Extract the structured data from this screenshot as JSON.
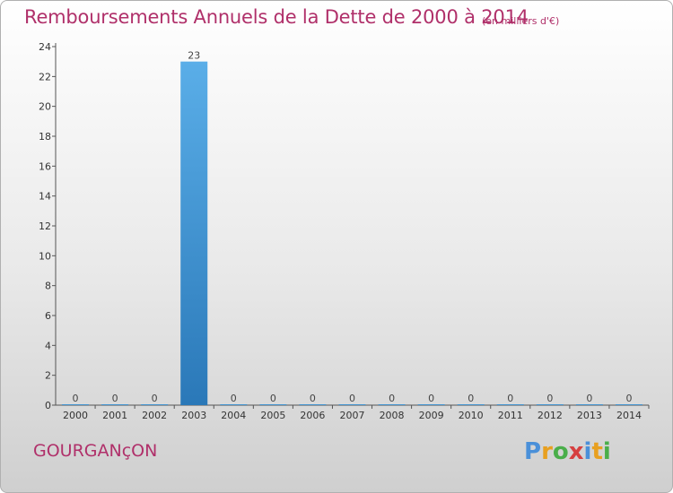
{
  "chart_data": {
    "type": "bar",
    "title": "Remboursements Annuels de la Dette de 2000 à 2014",
    "subtitle": "(en milliers d'€)",
    "categories": [
      "2000",
      "2001",
      "2002",
      "2003",
      "2004",
      "2005",
      "2006",
      "2007",
      "2008",
      "2009",
      "2010",
      "2011",
      "2012",
      "2013",
      "2014"
    ],
    "values": [
      0,
      0,
      0,
      23,
      0,
      0,
      0,
      0,
      0,
      0,
      0,
      0,
      0,
      0,
      0
    ],
    "ylim": [
      0,
      24
    ],
    "yticks": [
      0,
      2,
      4,
      6,
      8,
      10,
      12,
      14,
      16,
      18,
      20,
      22,
      24
    ],
    "xlabel": "",
    "ylabel": "",
    "grid": false,
    "bar_color_top": "#5aaee8",
    "bar_color_bottom": "#2a78b8"
  },
  "footer": {
    "commune": "GOURGANçON",
    "logo_letters": [
      {
        "char": "P",
        "color": "#4a90d9"
      },
      {
        "char": "r",
        "color": "#e8a020"
      },
      {
        "char": "o",
        "color": "#4aae4a"
      },
      {
        "char": "x",
        "color": "#d64040"
      },
      {
        "char": "i",
        "color": "#4a90d9"
      },
      {
        "char": "t",
        "color": "#e8a020"
      },
      {
        "char": "i",
        "color": "#4aae4a"
      }
    ]
  }
}
